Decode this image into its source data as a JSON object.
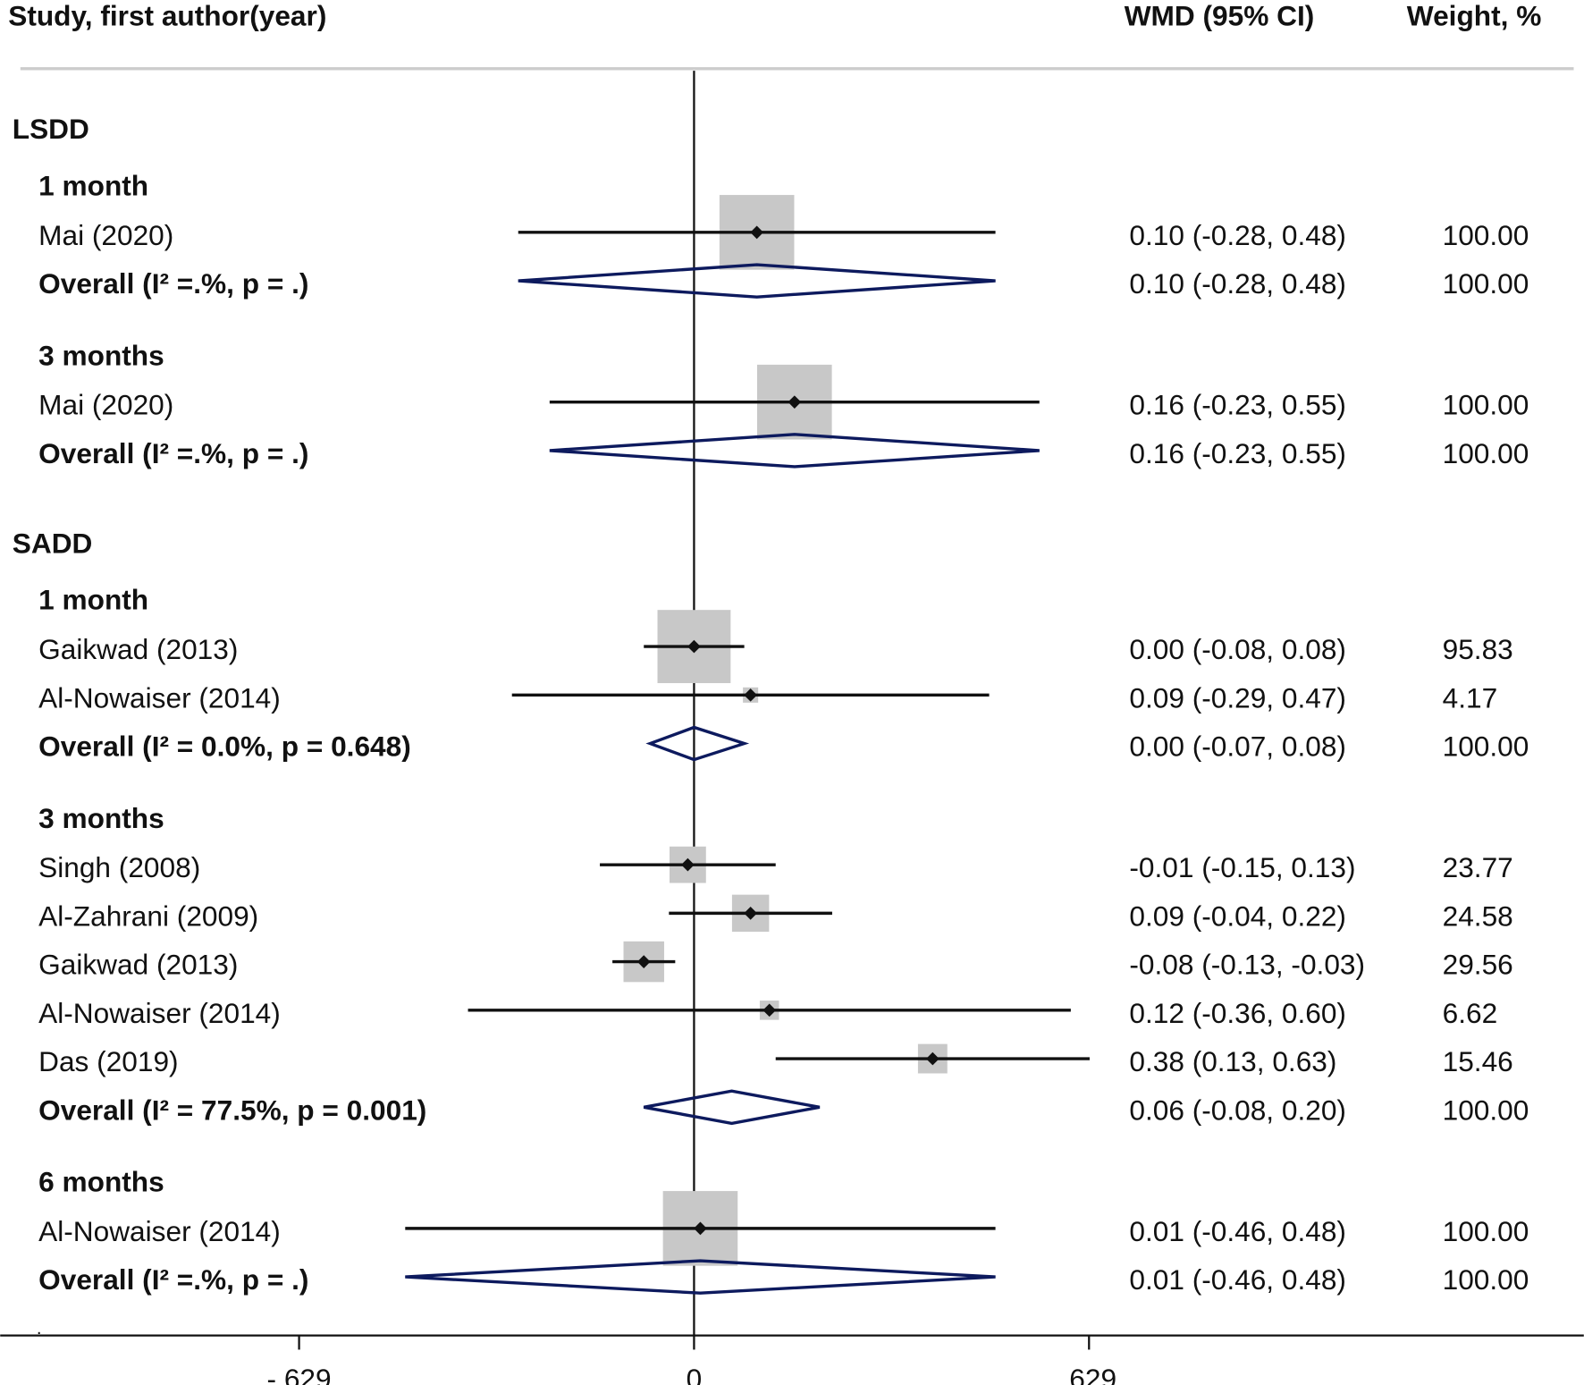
{
  "chart_data": {
    "type": "forest",
    "headers": {
      "study": "Study, first author(year)",
      "effect": "WMD (95% CI)",
      "weight": "Weight, %"
    },
    "xlim": [
      -1.105,
      1.417
    ],
    "xticks": [
      {
        "value": -0.629,
        "label": "-.629"
      },
      0,
      {
        "value": 0.629,
        "label": ".629"
      }
    ],
    "footnote": ".",
    "sections": [
      {
        "name": "LSDD",
        "subgroups": [
          {
            "name": "1 month",
            "studies": [
              {
                "label": "Mai (2020)",
                "est": 0.1,
                "lo": -0.28,
                "hi": 0.48,
                "ci_label": "0.10 (-0.28, 0.48)",
                "weight": 100,
                "weight_label": "100.00"
              }
            ],
            "overall": {
              "label": "Overall (I² =.%, p = .)",
              "est": 0.1,
              "lo": -0.28,
              "hi": 0.48,
              "ci_label": "0.10 (-0.28, 0.48)",
              "weight": 100,
              "weight_label": "100.00"
            }
          },
          {
            "name": "3 months",
            "studies": [
              {
                "label": "Mai (2020)",
                "est": 0.16,
                "lo": -0.23,
                "hi": 0.55,
                "ci_label": "0.16 (-0.23, 0.55)",
                "weight": 100,
                "weight_label": "100.00"
              }
            ],
            "overall": {
              "label": "Overall (I² =.%, p = .)",
              "est": 0.16,
              "lo": -0.23,
              "hi": 0.55,
              "ci_label": "0.16 (-0.23, 0.55)",
              "weight": 100,
              "weight_label": "100.00"
            }
          }
        ]
      },
      {
        "name": "SADD",
        "subgroups": [
          {
            "name": "1 month",
            "studies": [
              {
                "label": "Gaikwad (2013)",
                "est": 0.0,
                "lo": -0.08,
                "hi": 0.08,
                "ci_label": "0.00 (-0.08, 0.08)",
                "weight": 95.83,
                "weight_label": "95.83"
              },
              {
                "label": "Al-Nowaiser (2014)",
                "est": 0.09,
                "lo": -0.29,
                "hi": 0.47,
                "ci_label": "0.09 (-0.29, 0.47)",
                "weight": 4.17,
                "weight_label": "4.17"
              }
            ],
            "overall": {
              "label": "Overall (I² = 0.0%, p = 0.648)",
              "est": 0.0,
              "lo": -0.07,
              "hi": 0.08,
              "ci_label": "0.00 (-0.07, 0.08)",
              "weight": 100,
              "weight_label": "100.00"
            }
          },
          {
            "name": "3 months",
            "studies": [
              {
                "label": "Singh (2008)",
                "est": -0.01,
                "lo": -0.15,
                "hi": 0.13,
                "ci_label": "-0.01 (-0.15, 0.13)",
                "weight": 23.77,
                "weight_label": "23.77"
              },
              {
                "label": "Al-Zahrani (2009)",
                "est": 0.09,
                "lo": -0.04,
                "hi": 0.22,
                "ci_label": "0.09 (-0.04, 0.22)",
                "weight": 24.58,
                "weight_label": "24.58"
              },
              {
                "label": "Gaikwad (2013)",
                "est": -0.08,
                "lo": -0.13,
                "hi": -0.03,
                "ci_label": "-0.08 (-0.13, -0.03)",
                "weight": 29.56,
                "weight_label": "29.56"
              },
              {
                "label": "Al-Nowaiser (2014)",
                "est": 0.12,
                "lo": -0.36,
                "hi": 0.6,
                "ci_label": "0.12 (-0.36, 0.60)",
                "weight": 6.62,
                "weight_label": "6.62"
              },
              {
                "label": "Das (2019)",
                "est": 0.38,
                "lo": 0.13,
                "hi": 0.63,
                "ci_label": "0.38 (0.13, 0.63)",
                "weight": 15.46,
                "weight_label": "15.46"
              }
            ],
            "overall": {
              "label": "Overall (I² = 77.5%, p = 0.001)",
              "est": 0.06,
              "lo": -0.08,
              "hi": 0.2,
              "ci_label": "0.06 (-0.08, 0.20)",
              "weight": 100,
              "weight_label": "100.00"
            }
          },
          {
            "name": "6 months",
            "studies": [
              {
                "label": "Al-Nowaiser (2014)",
                "est": 0.01,
                "lo": -0.46,
                "hi": 0.48,
                "ci_label": "0.01 (-0.46, 0.48)",
                "weight": 100,
                "weight_label": "100.00"
              }
            ],
            "overall": {
              "label": "Overall (I² =.%, p = .)",
              "est": 0.01,
              "lo": -0.46,
              "hi": 0.48,
              "ci_label": "0.01 (-0.46, 0.48)",
              "weight": 100,
              "weight_label": "100.00"
            }
          }
        ]
      }
    ]
  }
}
